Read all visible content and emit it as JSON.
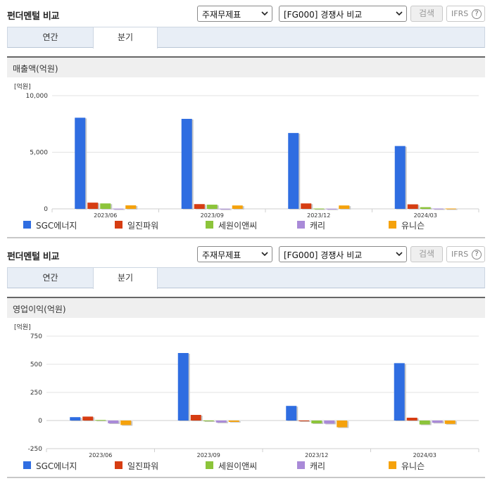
{
  "colors": {
    "SGC에너지": "#2f6de1",
    "일진파워": "#d63d12",
    "세원이앤씨": "#8cc43a",
    "캐리": "#a98ad8",
    "유니슨": "#f5a20c"
  },
  "panels": [
    {
      "header": {
        "title": "펀더멘털 비교",
        "select1": "주재무제표",
        "select2": "[FG000] 경쟁사 비교",
        "search_label": "검색",
        "ifrs_label": "IFRS",
        "help_symbol": "?"
      },
      "tabs": [
        {
          "label": "연간"
        },
        {
          "label": "분기"
        }
      ],
      "section_title": "매출액(억원)",
      "unit_label": "[억원]",
      "legend": [
        "SGC에너지",
        "일진파워",
        "세원이앤씨",
        "캐리",
        "유니슨"
      ]
    },
    {
      "header": {
        "title": "펀더멘털 비교",
        "select1": "주재무제표",
        "select2": "[FG000] 경쟁사 비교",
        "search_label": "검색",
        "ifrs_label": "IFRS",
        "help_symbol": "?"
      },
      "tabs": [
        {
          "label": "연간"
        },
        {
          "label": "분기"
        }
      ],
      "section_title": "영업이익(억원)",
      "unit_label": "[억원]",
      "legend": [
        "SGC에너지",
        "일진파워",
        "세원이앤씨",
        "캐리",
        "유니슨"
      ]
    }
  ],
  "chart_data": [
    {
      "type": "bar",
      "title": "매출액(억원)",
      "ylabel": "[억원]",
      "categories": [
        "2023/06",
        "2023/09",
        "2023/12",
        "2024/03"
      ],
      "ylim": [
        0,
        10000
      ],
      "yticks": [
        0,
        5000,
        10000
      ],
      "ytick_labels": [
        "0",
        "5,000",
        "10,000"
      ],
      "series": [
        {
          "name": "SGC에너지",
          "values": [
            8050,
            7950,
            6700,
            5550
          ]
        },
        {
          "name": "일진파워",
          "values": [
            550,
            420,
            480,
            400
          ]
        },
        {
          "name": "세원이앤씨",
          "values": [
            480,
            370,
            30,
            150
          ]
        },
        {
          "name": "캐리",
          "values": [
            20,
            15,
            15,
            30
          ]
        },
        {
          "name": "유니슨",
          "values": [
            310,
            300,
            300,
            30
          ]
        }
      ],
      "legend_position": "bottom",
      "grid": true
    },
    {
      "type": "bar",
      "title": "영업이익(억원)",
      "ylabel": "[억원]",
      "categories": [
        "2023/06",
        "2023/09",
        "2023/12",
        "2024/03"
      ],
      "ylim": [
        -250,
        750
      ],
      "yticks": [
        -250,
        0,
        250,
        500,
        750
      ],
      "ytick_labels": [
        "-250",
        "0",
        "250",
        "500",
        "750"
      ],
      "series": [
        {
          "name": "SGC에너지",
          "values": [
            30,
            600,
            130,
            510
          ]
        },
        {
          "name": "일진파워",
          "values": [
            35,
            50,
            0,
            25
          ]
        },
        {
          "name": "세원이앤씨",
          "values": [
            5,
            0,
            -25,
            -35
          ]
        },
        {
          "name": "캐리",
          "values": [
            -25,
            -18,
            -28,
            -20
          ]
        },
        {
          "name": "유니슨",
          "values": [
            -40,
            -12,
            -60,
            -30
          ]
        }
      ],
      "legend_position": "bottom",
      "grid": true
    }
  ]
}
